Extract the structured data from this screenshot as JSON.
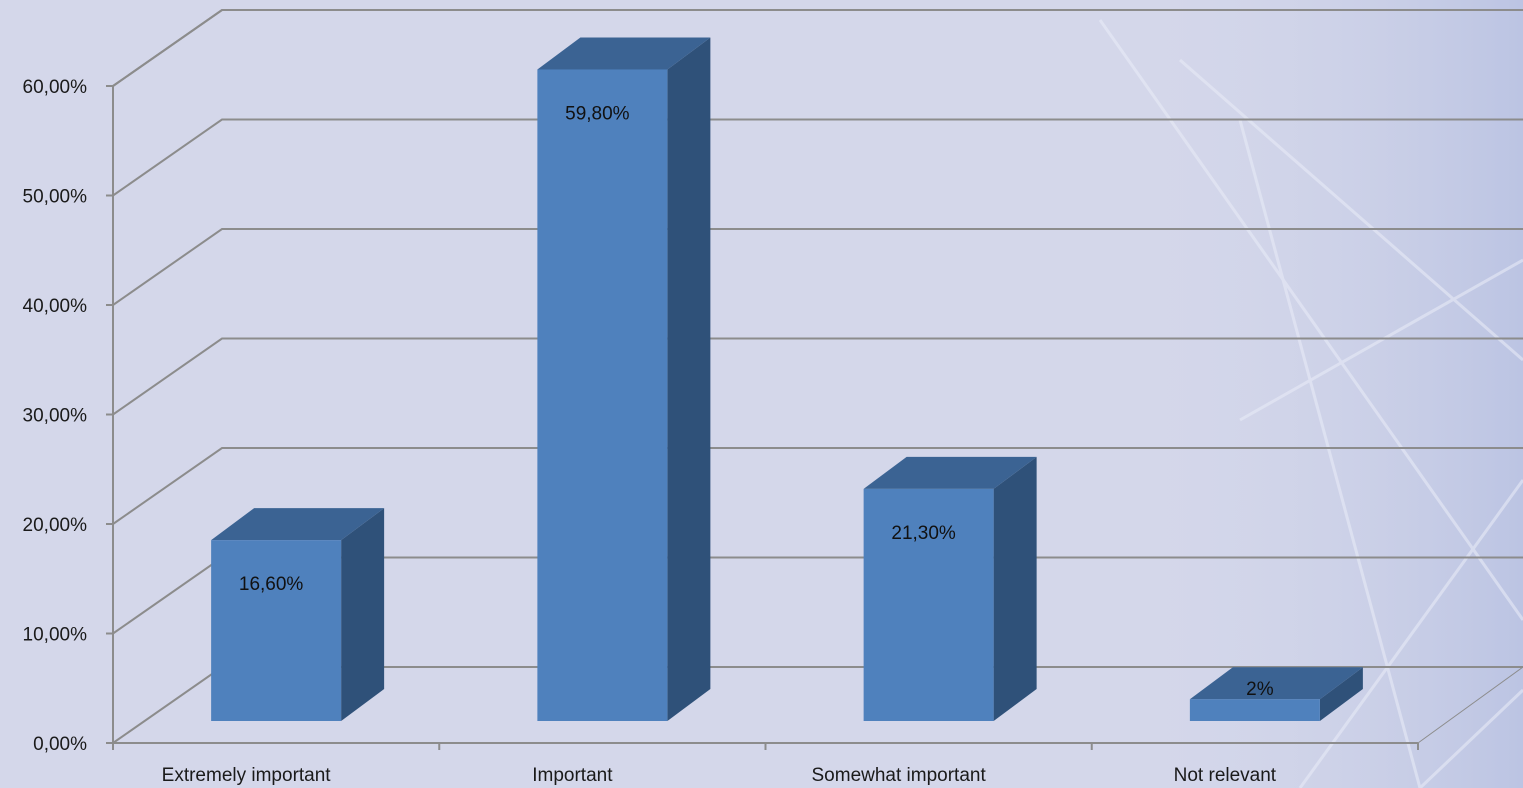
{
  "chart_data": {
    "type": "bar",
    "categories": [
      "Extremely important",
      "Important",
      "Somewhat important",
      "Not relevant"
    ],
    "values": [
      16.6,
      59.8,
      21.3,
      2
    ],
    "data_labels": [
      "16,60%",
      "59,80%",
      "21,30%",
      "2%"
    ],
    "ylim": [
      0,
      60
    ],
    "yticks": [
      0,
      10,
      20,
      30,
      40,
      50,
      60
    ],
    "ytick_labels": [
      "0,00%",
      "10,00%",
      "20,00%",
      "30,00%",
      "40,00%",
      "50,00%",
      "60,00%"
    ],
    "grid": true,
    "style": "3d-column",
    "colors": {
      "bar_front": "#4f81bd",
      "bar_top": "#3b6393",
      "bar_side": "#2f5179",
      "background": "#d4d7ea",
      "grid": "#8c8c8c"
    }
  }
}
